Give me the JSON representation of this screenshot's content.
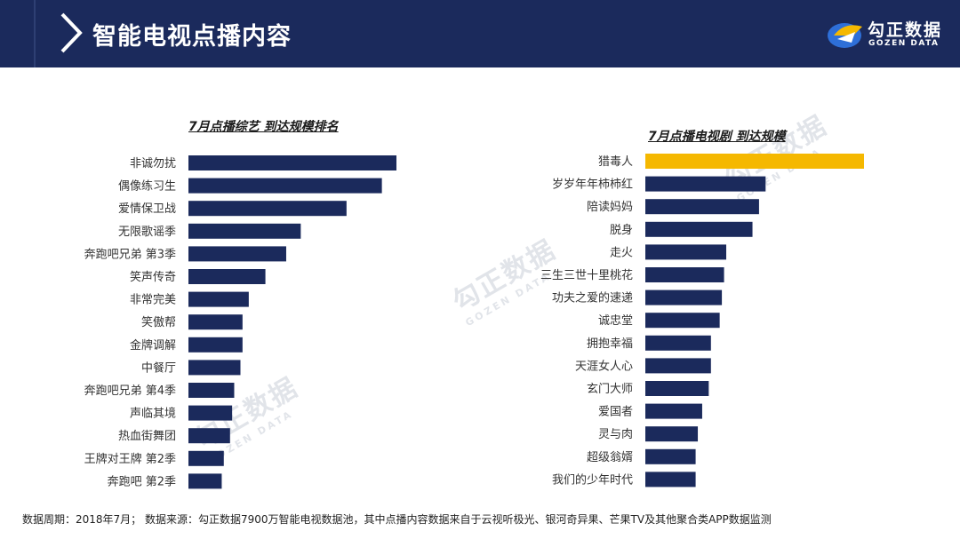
{
  "header": {
    "title": "智能电视点播内容"
  },
  "logo": {
    "cn": "勾正数据",
    "en": "GOZEN DATA"
  },
  "watermark": {
    "cn": "勾正数据",
    "en": "GOZEN DATA"
  },
  "colors": {
    "header_bg": "#1b2a5c",
    "bar": "#1b2a5c",
    "highlight": "#f5b800"
  },
  "chart_data": [
    {
      "type": "bar",
      "orientation": "horizontal",
      "title": "7月点播综艺 到达规模排名",
      "categories": [
        "非诚勿扰",
        "偶像练习生",
        "爱情保卫战",
        "无限歌谣季",
        "奔跑吧兄弟 第3季",
        "笑声传奇",
        "非常完美",
        "笑傲帮",
        "金牌调解",
        "中餐厅",
        "奔跑吧兄弟 第4季",
        "声临其境",
        "热血街舞团",
        "王牌对王牌 第2季",
        "奔跑吧 第2季"
      ],
      "values": [
        100,
        93,
        76,
        54,
        47,
        37,
        29,
        26,
        26,
        25,
        22,
        21,
        20,
        17,
        16
      ],
      "xlim": [
        0,
        100
      ]
    },
    {
      "type": "bar",
      "orientation": "horizontal",
      "title": "7月点播电视剧 到达规模",
      "categories": [
        "猎毒人",
        "岁岁年年柿柿红",
        "陪读妈妈",
        "脱身",
        "走火",
        "三生三世十里桃花",
        "功夫之爱的速递",
        "诚忠堂",
        "拥抱幸福",
        "天涯女人心",
        "玄门大师",
        "爱国者",
        "灵与肉",
        "超级翁婿",
        "我们的少年时代"
      ],
      "values": [
        100,
        55,
        52,
        49,
        37,
        36,
        35,
        34,
        30,
        30,
        29,
        26,
        24,
        23,
        23
      ],
      "highlight_index": 0,
      "xlim": [
        0,
        100
      ]
    }
  ],
  "footer": {
    "note": "数据周期：2018年7月；  数据来源：勾正数据7900万智能电视数据池，其中点播内容数据来自于云视听极光、银河奇异果、芒果TV及其他聚合类APP数据监测"
  }
}
